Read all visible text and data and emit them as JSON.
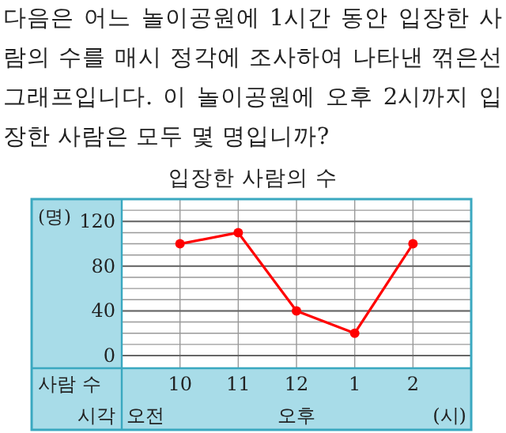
{
  "chart_data": {
    "type": "line",
    "title": "입장한 사람의 수",
    "ylabel": "(명)",
    "annotations": [
      "다음은 어느 놀이공원에 1시간 동안 입장한 사람의 수를 매시 정각에 조사하여 나타낸 꺾은선그래프입니다. 이 놀이공원에 오후 2시까지 입장한 사람은 모두 몇 명입니까?",
      "사람 수",
      "시각",
      "오전",
      "오후",
      "(시)"
    ],
    "categories": [
      "10",
      "11",
      "12",
      "1",
      "2"
    ],
    "series": [
      {
        "color": "#ff0000",
        "values": [
          100,
          110,
          40,
          20,
          100
        ]
      }
    ],
    "marker": "circle",
    "ylim": [
      0,
      140
    ],
    "yticks": [
      0,
      40,
      80,
      120
    ],
    "grid": true
  }
}
